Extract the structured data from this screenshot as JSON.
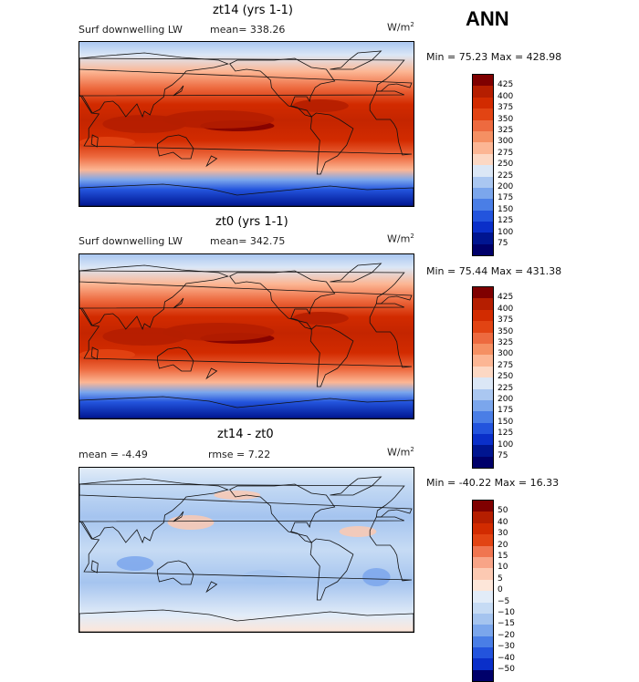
{
  "header": {
    "season": "ANN"
  },
  "panels": [
    {
      "title": "zt14 (yrs 1-1)",
      "variable": "Surf downwelling LW",
      "stat": "mean= 338.26",
      "units": "W/m",
      "units_exp": "2",
      "minmax": "Min =  75.23 Max =  428.98",
      "map_kind": "abs",
      "colorbar": {
        "labels": [
          "425",
          "400",
          "375",
          "350",
          "325",
          "300",
          "275",
          "250",
          "225",
          "200",
          "175",
          "150",
          "125",
          "100",
          "75"
        ],
        "colors": [
          "#7f0000",
          "#b51e00",
          "#d22b00",
          "#e24413",
          "#ed6a3f",
          "#f59063",
          "#fcb694",
          "#fcd8c4",
          "#dbe7f6",
          "#aac7f1",
          "#7ba6ec",
          "#4a7ee6",
          "#2354dd",
          "#0a2fc9",
          "#001590",
          "#00006a"
        ]
      }
    },
    {
      "title": "zt0 (yrs 1-1)",
      "variable": "Surf downwelling LW",
      "stat": "mean= 342.75",
      "units": "W/m",
      "units_exp": "2",
      "minmax": "Min =  75.44 Max =  431.38",
      "map_kind": "abs",
      "colorbar": {
        "labels": [
          "425",
          "400",
          "375",
          "350",
          "325",
          "300",
          "275",
          "250",
          "225",
          "200",
          "175",
          "150",
          "125",
          "100",
          "75"
        ],
        "colors": [
          "#7f0000",
          "#b51e00",
          "#d22b00",
          "#e24413",
          "#ed6a3f",
          "#f59063",
          "#fcb694",
          "#fcd8c4",
          "#dbe7f6",
          "#aac7f1",
          "#7ba6ec",
          "#4a7ee6",
          "#2354dd",
          "#0a2fc9",
          "#001590",
          "#00006a"
        ]
      }
    },
    {
      "title": "zt14 - zt0",
      "variable": "mean =   -4.49",
      "stat": "rmse =    7.22",
      "units": "W/m",
      "units_exp": "2",
      "minmax": "Min = -40.22 Max =   16.33",
      "map_kind": "diff",
      "colorbar": {
        "labels": [
          "50",
          "40",
          "30",
          "20",
          "15",
          "10",
          "5",
          "0",
          "−5",
          "−10",
          "−15",
          "−20",
          "−30",
          "−40",
          "−50"
        ],
        "colors": [
          "#7f0000",
          "#b51e00",
          "#d22b00",
          "#e24413",
          "#f07550",
          "#f8a487",
          "#fcc9b2",
          "#fde6d9",
          "#e2ecf8",
          "#c6dbf4",
          "#a5c4ef",
          "#7ba6ec",
          "#4a7ee6",
          "#2354dd",
          "#0a2fc9",
          "#00006a"
        ]
      }
    }
  ]
}
